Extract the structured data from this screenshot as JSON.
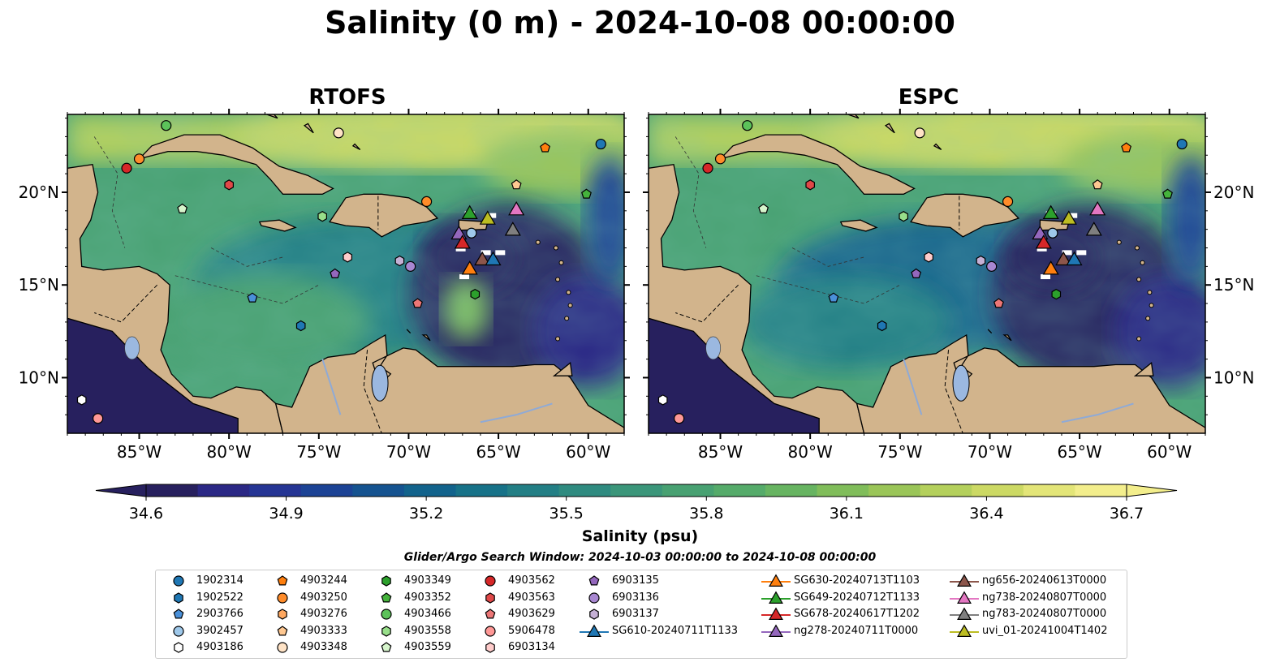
{
  "title": "Salinity (0 m) - 2024-10-08 00:00:00",
  "panels": [
    {
      "title": "RTOFS"
    },
    {
      "title": "ESPC"
    }
  ],
  "map": {
    "lon_range": [
      -89,
      -58
    ],
    "lat_range": [
      7,
      24.2
    ],
    "lon_ticks": [
      {
        "value": -85,
        "label": "85°W"
      },
      {
        "value": -80,
        "label": "80°W"
      },
      {
        "value": -75,
        "label": "75°W"
      },
      {
        "value": -70,
        "label": "70°W"
      },
      {
        "value": -65,
        "label": "65°W"
      },
      {
        "value": -60,
        "label": "60°W"
      }
    ],
    "lat_ticks": [
      {
        "value": 10,
        "label": "10°N"
      },
      {
        "value": 15,
        "label": "15°N"
      },
      {
        "value": 20,
        "label": "20°N"
      }
    ],
    "land_color": "#d2b48c",
    "lake_color": "#9bb8e0"
  },
  "colorbar": {
    "label": "Salinity (psu)",
    "min": 34.6,
    "max": 36.7,
    "ticks": [
      "34.6",
      "34.9",
      "35.2",
      "35.5",
      "35.8",
      "36.1",
      "36.4",
      "36.7"
    ],
    "colors": [
      "#27205e",
      "#2b2885",
      "#253594",
      "#1c4395",
      "#155390",
      "#12638c",
      "#177288",
      "#237f85",
      "#2f8b80",
      "#3b967a",
      "#48a172",
      "#55ab6a",
      "#67b461",
      "#80bd5a",
      "#9ac558",
      "#b4d05c",
      "#ccd964",
      "#e3e578",
      "#f3ee8c"
    ]
  },
  "search_window": "Glider/Argo Search Window: 2024-10-03 00:00:00 to 2024-10-08 00:00:00",
  "legend": [
    {
      "label": "1902314",
      "marker": "circle",
      "color": "#1f77b4"
    },
    {
      "label": "1902522",
      "marker": "hexagon",
      "color": "#1f77b4"
    },
    {
      "label": "2903766",
      "marker": "pentagon",
      "color": "#4a90d9"
    },
    {
      "label": "3902457",
      "marker": "circle",
      "color": "#9ec8ea"
    },
    {
      "label": "4903186",
      "marker": "hexagon",
      "color": "#ffffff"
    },
    {
      "label": "4903244",
      "marker": "pentagon",
      "color": "#ff7f0e"
    },
    {
      "label": "4903250",
      "marker": "circle",
      "color": "#ff8c2a"
    },
    {
      "label": "4903276",
      "marker": "hexagon",
      "color": "#ffa860"
    },
    {
      "label": "4903333",
      "marker": "pentagon",
      "color": "#ffc891"
    },
    {
      "label": "4903348",
      "marker": "circle",
      "color": "#ffe3c6"
    },
    {
      "label": "4903349",
      "marker": "hexagon",
      "color": "#2ca02c"
    },
    {
      "label": "4903352",
      "marker": "pentagon",
      "color": "#45b33c"
    },
    {
      "label": "4903466",
      "marker": "circle",
      "color": "#5cc25a"
    },
    {
      "label": "4903558",
      "marker": "hexagon",
      "color": "#98df8a"
    },
    {
      "label": "4903559",
      "marker": "pentagon",
      "color": "#d6f5cc"
    },
    {
      "label": "4903562",
      "marker": "circle",
      "color": "#d62728"
    },
    {
      "label": "4903563",
      "marker": "hexagon",
      "color": "#e04848"
    },
    {
      "label": "4903629",
      "marker": "pentagon",
      "color": "#ec7676"
    },
    {
      "label": "5906478",
      "marker": "circle",
      "color": "#ff9896"
    },
    {
      "label": "6903134",
      "marker": "hexagon",
      "color": "#ffcccb"
    },
    {
      "label": "6903135",
      "marker": "pentagon",
      "color": "#9467bd"
    },
    {
      "label": "6903136",
      "marker": "circle",
      "color": "#a887d1"
    },
    {
      "label": "6903137",
      "marker": "hexagon",
      "color": "#c5b0d5"
    },
    {
      "label": "SG610-20240711T1133",
      "marker": "triangle-line",
      "color": "#1f77b4"
    },
    {
      "label": "SG630-20240713T1103",
      "marker": "triangle-line",
      "color": "#ff7f0e"
    },
    {
      "label": "SG649-20240712T1133",
      "marker": "triangle-line",
      "color": "#2ca02c"
    },
    {
      "label": "SG678-20240617T1202",
      "marker": "triangle-line",
      "color": "#d62728"
    },
    {
      "label": "ng278-20240711T0000",
      "marker": "triangle-line",
      "color": "#9467bd"
    },
    {
      "label": "ng656-20240613T0000",
      "marker": "triangle-line",
      "color": "#8c564b"
    },
    {
      "label": "ng738-20240807T0000",
      "marker": "triangle-line",
      "color": "#e377c2"
    },
    {
      "label": "ng783-20240807T0000",
      "marker": "triangle-line",
      "color": "#7f7f7f"
    },
    {
      "label": "uvi_01-20241004T1402",
      "marker": "triangle-line",
      "color": "#bcbd22"
    }
  ],
  "floats": [
    {
      "label": "1902314",
      "lon": -59.3,
      "lat": 22.6
    },
    {
      "label": "4903244",
      "lon": -62.4,
      "lat": 22.4
    },
    {
      "label": "4903250",
      "lon": -85.0,
      "lat": 21.8
    },
    {
      "label": "4903562",
      "lon": -85.7,
      "lat": 21.3
    },
    {
      "label": "4903466",
      "lon": -83.5,
      "lat": 23.6
    },
    {
      "label": "4903348",
      "lon": -73.9,
      "lat": 23.2
    },
    {
      "label": "4903563",
      "lon": -80.0,
      "lat": 20.4
    },
    {
      "label": "4903559",
      "lon": -82.6,
      "lat": 19.1
    },
    {
      "label": "4903558",
      "lon": -74.8,
      "lat": 18.7
    },
    {
      "label": "4903250",
      "lon": -69.0,
      "lat": 19.5
    },
    {
      "label": "4903333",
      "lon": -64.0,
      "lat": 20.4
    },
    {
      "label": "4903352",
      "lon": -60.1,
      "lat": 19.9
    },
    {
      "label": "3902457",
      "lon": -66.5,
      "lat": 17.8
    },
    {
      "label": "6903134",
      "lon": -73.4,
      "lat": 16.5
    },
    {
      "label": "6903137",
      "lon": -70.5,
      "lat": 16.3
    },
    {
      "label": "6903136",
      "lon": -69.9,
      "lat": 16.0
    },
    {
      "label": "6903135",
      "lon": -74.1,
      "lat": 15.6
    },
    {
      "label": "4903629",
      "lon": -69.5,
      "lat": 14.0
    },
    {
      "label": "4903349",
      "lon": -66.3,
      "lat": 14.5
    },
    {
      "label": "2903766",
      "lon": -78.7,
      "lat": 14.3
    },
    {
      "label": "1902522",
      "lon": -76.0,
      "lat": 12.8
    },
    {
      "label": "4903186",
      "lon": -88.2,
      "lat": 8.8
    },
    {
      "label": "5906478",
      "lon": -87.3,
      "lat": 7.8
    }
  ],
  "gliders": [
    {
      "label": "SG649-20240712T1133",
      "lon": -66.6,
      "lat": 18.9
    },
    {
      "label": "uvi_01-20241004T1402",
      "lon": -65.6,
      "lat": 18.6
    },
    {
      "label": "ng738-20240807T0000",
      "lon": -64.0,
      "lat": 19.1
    },
    {
      "label": "ng783-20240807T0000",
      "lon": -64.2,
      "lat": 18.0
    },
    {
      "label": "ng278-20240711T0000",
      "lon": -67.2,
      "lat": 17.8
    },
    {
      "label": "SG678-20240617T1202",
      "lon": -67.0,
      "lat": 17.3
    },
    {
      "label": "ng656-20240613T0000",
      "lon": -65.9,
      "lat": 16.4
    },
    {
      "label": "SG610-20240711T1133",
      "lon": -65.3,
      "lat": 16.4
    },
    {
      "label": "SG630-20240713T1103",
      "lon": -66.6,
      "lat": 15.9
    }
  ]
}
